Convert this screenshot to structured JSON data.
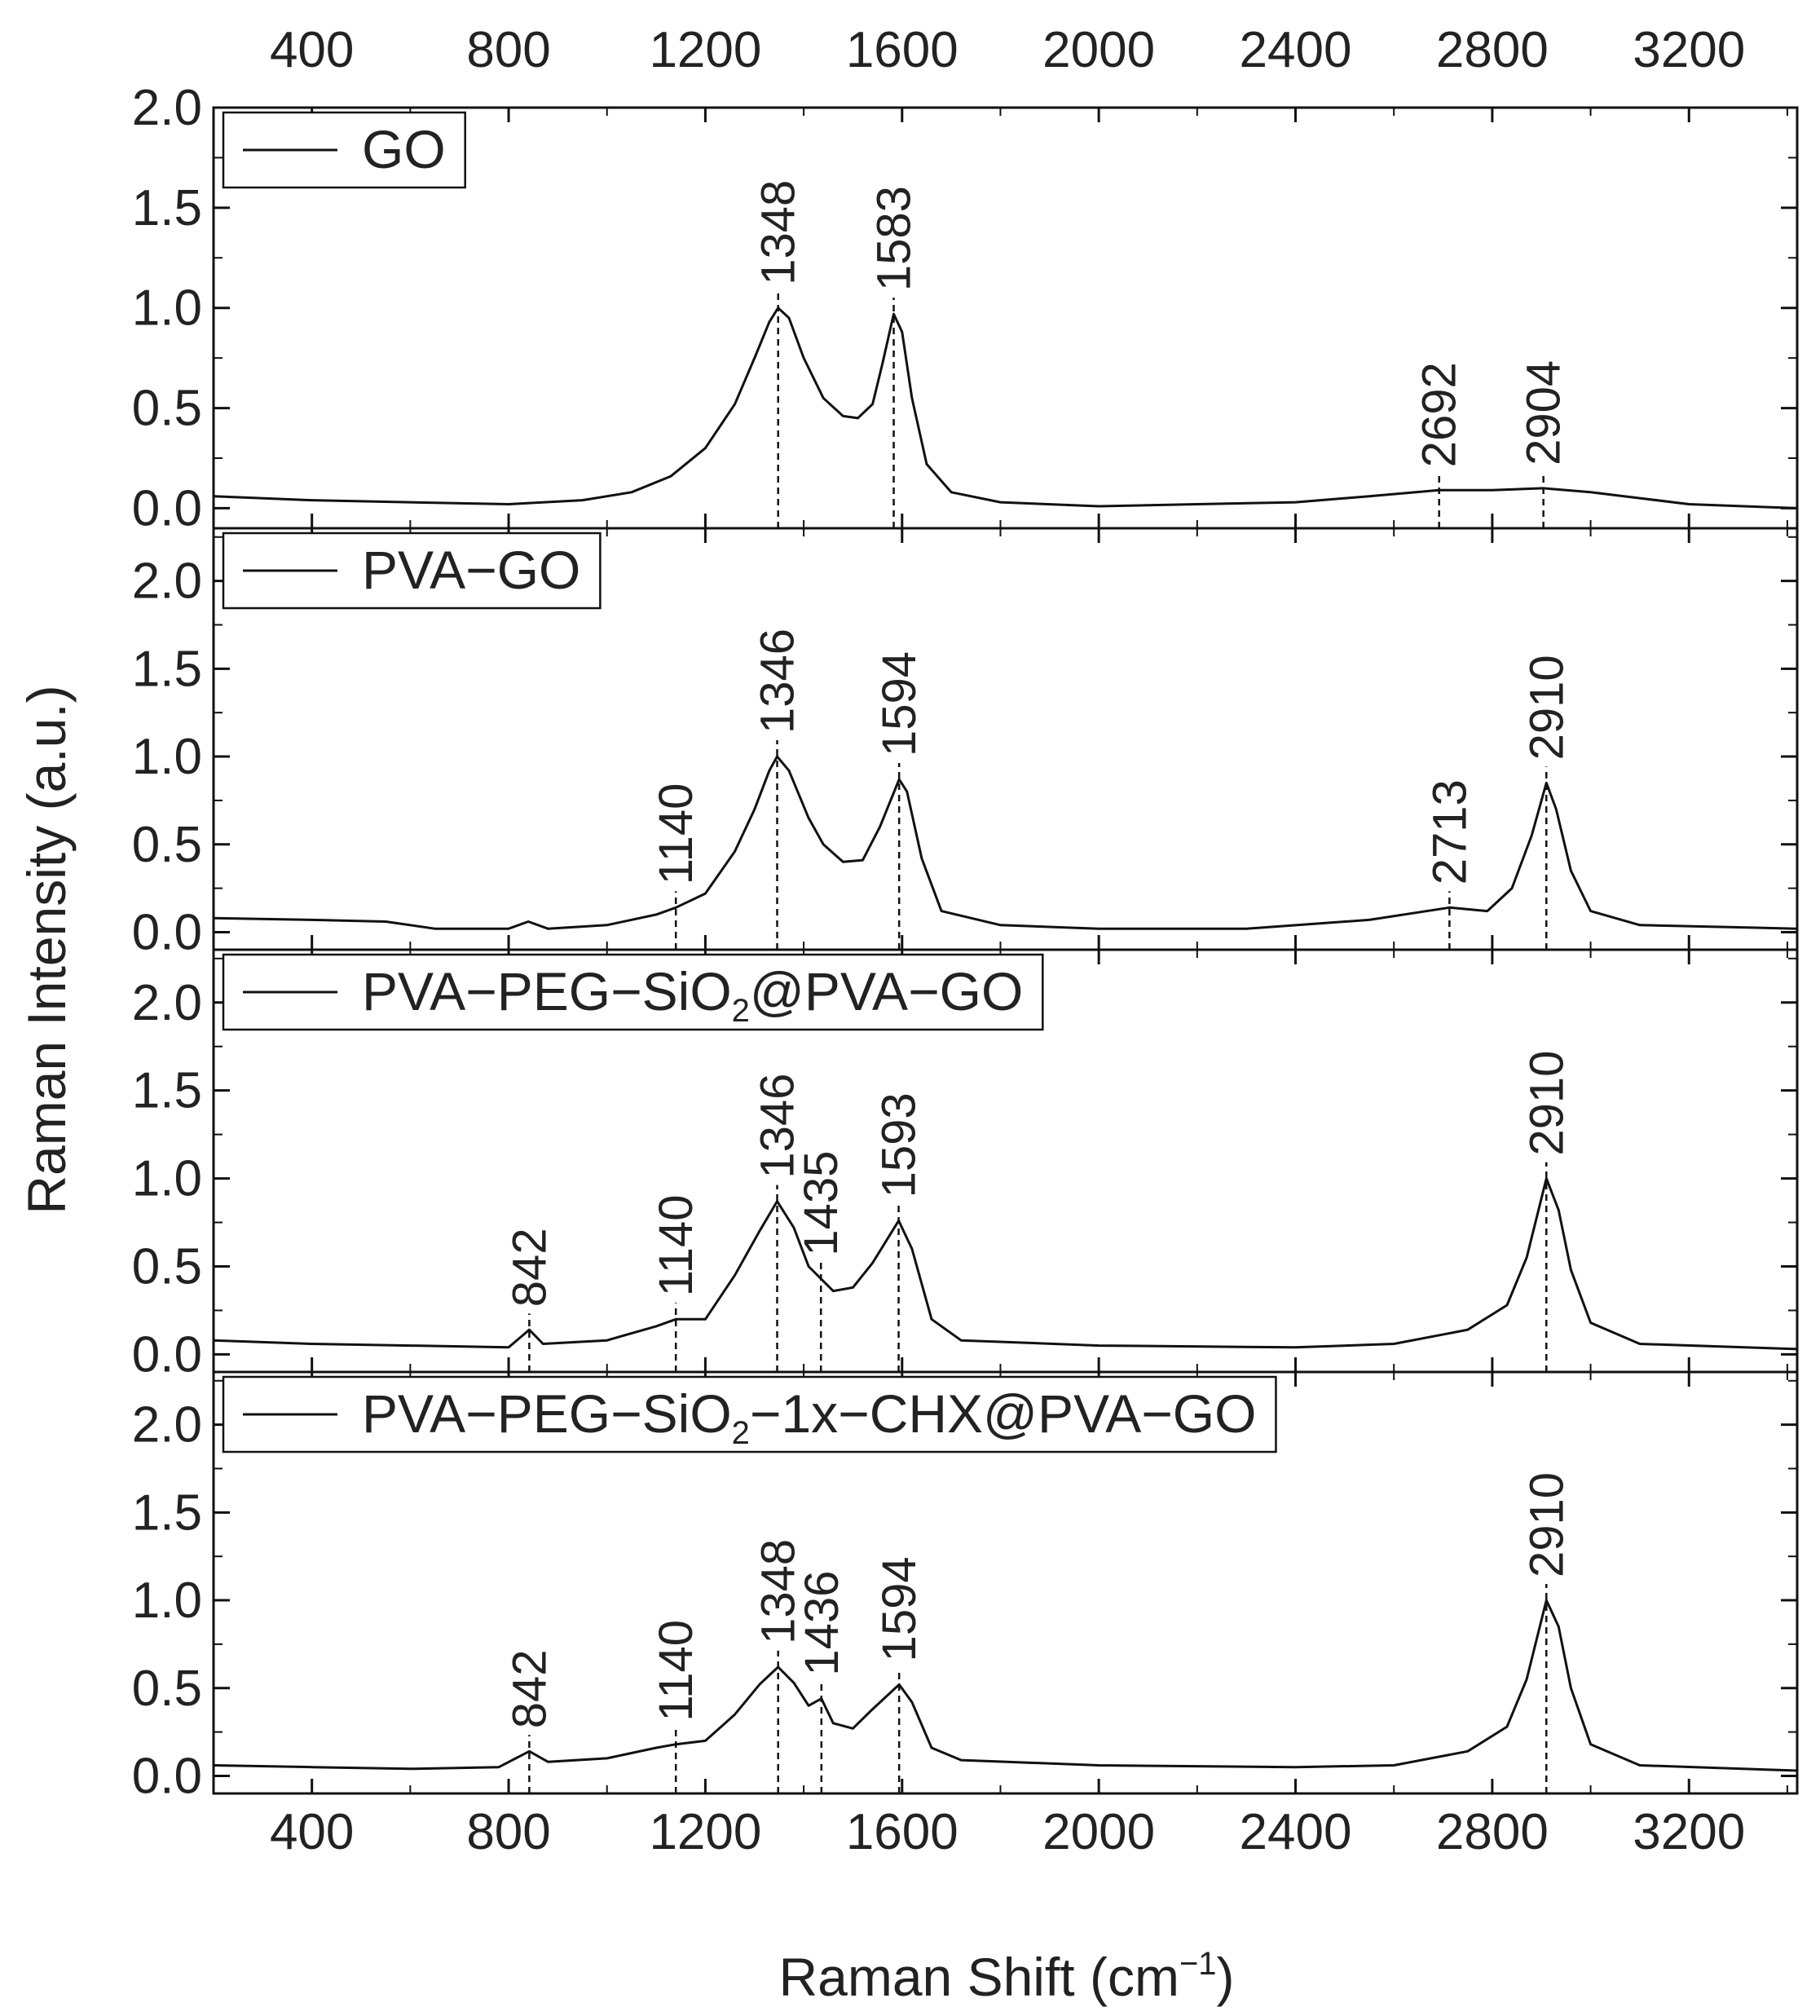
{
  "chart_data": {
    "type": "line",
    "layout": "stacked-panels",
    "xlabel": "Raman Shift (cm",
    "xlabel_sup": "−1",
    "xlabel_close": ")",
    "ylabel": "Raman Intensity (a.u.)",
    "xlim": [
      200,
      3420
    ],
    "x_ticks": [
      "400",
      "800",
      "1200",
      "1600",
      "2000",
      "2400",
      "2800",
      "3200"
    ],
    "x_tick_values": [
      400,
      800,
      1200,
      1600,
      2000,
      2400,
      2800,
      3200
    ],
    "panels": [
      {
        "legend": "GO",
        "legend_sub": "",
        "legend_rest": "",
        "ylim": [
          -0.1,
          2.0
        ],
        "y_ticks": [
          "0.0",
          "0.5",
          "1.0",
          "1.5",
          "2.0"
        ],
        "y_tick_values": [
          0.0,
          0.5,
          1.0,
          1.5,
          2.0
        ],
        "baseline": 0.0,
        "peaks": [
          {
            "x": 1348,
            "label": "1348"
          },
          {
            "x": 1583,
            "label": "1583"
          },
          {
            "x": 2692,
            "label": "2692"
          },
          {
            "x": 2904,
            "label": "2904"
          }
        ],
        "series": [
          {
            "x": 200,
            "y": 0.06
          },
          {
            "x": 400,
            "y": 0.04
          },
          {
            "x": 600,
            "y": 0.03
          },
          {
            "x": 800,
            "y": 0.02
          },
          {
            "x": 950,
            "y": 0.04
          },
          {
            "x": 1050,
            "y": 0.08
          },
          {
            "x": 1130,
            "y": 0.16
          },
          {
            "x": 1200,
            "y": 0.3
          },
          {
            "x": 1260,
            "y": 0.52
          },
          {
            "x": 1300,
            "y": 0.75
          },
          {
            "x": 1330,
            "y": 0.93
          },
          {
            "x": 1348,
            "y": 1.0
          },
          {
            "x": 1370,
            "y": 0.95
          },
          {
            "x": 1400,
            "y": 0.75
          },
          {
            "x": 1440,
            "y": 0.55
          },
          {
            "x": 1480,
            "y": 0.46
          },
          {
            "x": 1510,
            "y": 0.45
          },
          {
            "x": 1540,
            "y": 0.52
          },
          {
            "x": 1560,
            "y": 0.72
          },
          {
            "x": 1583,
            "y": 0.97
          },
          {
            "x": 1600,
            "y": 0.88
          },
          {
            "x": 1620,
            "y": 0.55
          },
          {
            "x": 1650,
            "y": 0.22
          },
          {
            "x": 1700,
            "y": 0.08
          },
          {
            "x": 1800,
            "y": 0.03
          },
          {
            "x": 2000,
            "y": 0.01
          },
          {
            "x": 2200,
            "y": 0.02
          },
          {
            "x": 2400,
            "y": 0.03
          },
          {
            "x": 2550,
            "y": 0.06
          },
          {
            "x": 2692,
            "y": 0.09
          },
          {
            "x": 2800,
            "y": 0.09
          },
          {
            "x": 2904,
            "y": 0.1
          },
          {
            "x": 3000,
            "y": 0.08
          },
          {
            "x": 3100,
            "y": 0.05
          },
          {
            "x": 3200,
            "y": 0.02
          },
          {
            "x": 3420,
            "y": 0.0
          }
        ]
      },
      {
        "legend": "PVA−GO",
        "legend_sub": "",
        "legend_rest": "",
        "ylim": [
          -0.1,
          2.3
        ],
        "y_ticks": [
          "0.0",
          "0.5",
          "1.0",
          "1.5",
          "2.0"
        ],
        "y_tick_values": [
          0.0,
          0.5,
          1.0,
          1.5,
          2.0
        ],
        "baseline": 0.0,
        "peaks": [
          {
            "x": 1140,
            "label": "1140"
          },
          {
            "x": 1346,
            "label": "1346"
          },
          {
            "x": 1594,
            "label": "1594"
          },
          {
            "x": 2713,
            "label": "2713"
          },
          {
            "x": 2910,
            "label": "2910"
          }
        ],
        "series": [
          {
            "x": 200,
            "y": 0.08
          },
          {
            "x": 400,
            "y": 0.07
          },
          {
            "x": 550,
            "y": 0.06
          },
          {
            "x": 650,
            "y": 0.02
          },
          {
            "x": 800,
            "y": 0.02
          },
          {
            "x": 840,
            "y": 0.06
          },
          {
            "x": 880,
            "y": 0.02
          },
          {
            "x": 1000,
            "y": 0.04
          },
          {
            "x": 1100,
            "y": 0.1
          },
          {
            "x": 1140,
            "y": 0.14
          },
          {
            "x": 1200,
            "y": 0.22
          },
          {
            "x": 1260,
            "y": 0.46
          },
          {
            "x": 1300,
            "y": 0.7
          },
          {
            "x": 1330,
            "y": 0.92
          },
          {
            "x": 1346,
            "y": 1.0
          },
          {
            "x": 1370,
            "y": 0.92
          },
          {
            "x": 1410,
            "y": 0.65
          },
          {
            "x": 1440,
            "y": 0.5
          },
          {
            "x": 1480,
            "y": 0.4
          },
          {
            "x": 1520,
            "y": 0.41
          },
          {
            "x": 1555,
            "y": 0.6
          },
          {
            "x": 1594,
            "y": 0.87
          },
          {
            "x": 1610,
            "y": 0.8
          },
          {
            "x": 1640,
            "y": 0.42
          },
          {
            "x": 1680,
            "y": 0.12
          },
          {
            "x": 1800,
            "y": 0.04
          },
          {
            "x": 2000,
            "y": 0.02
          },
          {
            "x": 2300,
            "y": 0.02
          },
          {
            "x": 2550,
            "y": 0.07
          },
          {
            "x": 2713,
            "y": 0.14
          },
          {
            "x": 2790,
            "y": 0.12
          },
          {
            "x": 2840,
            "y": 0.25
          },
          {
            "x": 2880,
            "y": 0.55
          },
          {
            "x": 2910,
            "y": 0.85
          },
          {
            "x": 2930,
            "y": 0.7
          },
          {
            "x": 2960,
            "y": 0.35
          },
          {
            "x": 3000,
            "y": 0.12
          },
          {
            "x": 3100,
            "y": 0.04
          },
          {
            "x": 3420,
            "y": 0.02
          }
        ]
      },
      {
        "legend": "PVA−PEG−SiO",
        "legend_sub": "2",
        "legend_rest": "@PVA−GO",
        "ylim": [
          -0.1,
          2.3
        ],
        "y_ticks": [
          "0.0",
          "0.5",
          "1.0",
          "1.5",
          "2.0"
        ],
        "y_tick_values": [
          0.0,
          0.5,
          1.0,
          1.5,
          2.0
        ],
        "baseline": 0.0,
        "peaks": [
          {
            "x": 842,
            "label": "842"
          },
          {
            "x": 1140,
            "label": "1140"
          },
          {
            "x": 1346,
            "label": "1346"
          },
          {
            "x": 1435,
            "label": "1435"
          },
          {
            "x": 1593,
            "label": "1593"
          },
          {
            "x": 2910,
            "label": "2910"
          }
        ],
        "series": [
          {
            "x": 200,
            "y": 0.08
          },
          {
            "x": 400,
            "y": 0.06
          },
          {
            "x": 600,
            "y": 0.05
          },
          {
            "x": 800,
            "y": 0.04
          },
          {
            "x": 842,
            "y": 0.14
          },
          {
            "x": 870,
            "y": 0.06
          },
          {
            "x": 1000,
            "y": 0.08
          },
          {
            "x": 1100,
            "y": 0.16
          },
          {
            "x": 1140,
            "y": 0.2
          },
          {
            "x": 1200,
            "y": 0.2
          },
          {
            "x": 1260,
            "y": 0.45
          },
          {
            "x": 1310,
            "y": 0.7
          },
          {
            "x": 1346,
            "y": 0.87
          },
          {
            "x": 1380,
            "y": 0.72
          },
          {
            "x": 1410,
            "y": 0.5
          },
          {
            "x": 1435,
            "y": 0.43
          },
          {
            "x": 1460,
            "y": 0.36
          },
          {
            "x": 1500,
            "y": 0.38
          },
          {
            "x": 1540,
            "y": 0.52
          },
          {
            "x": 1593,
            "y": 0.76
          },
          {
            "x": 1620,
            "y": 0.6
          },
          {
            "x": 1660,
            "y": 0.2
          },
          {
            "x": 1720,
            "y": 0.08
          },
          {
            "x": 2000,
            "y": 0.05
          },
          {
            "x": 2400,
            "y": 0.04
          },
          {
            "x": 2600,
            "y": 0.06
          },
          {
            "x": 2750,
            "y": 0.14
          },
          {
            "x": 2830,
            "y": 0.28
          },
          {
            "x": 2870,
            "y": 0.55
          },
          {
            "x": 2910,
            "y": 1.0
          },
          {
            "x": 2935,
            "y": 0.82
          },
          {
            "x": 2960,
            "y": 0.48
          },
          {
            "x": 3000,
            "y": 0.18
          },
          {
            "x": 3100,
            "y": 0.06
          },
          {
            "x": 3420,
            "y": 0.03
          }
        ]
      },
      {
        "legend": "PVA−PEG−SiO",
        "legend_sub": "2",
        "legend_rest": "−1x−CHX@PVA−GO",
        "ylim": [
          -0.1,
          2.3
        ],
        "y_ticks": [
          "0.0",
          "0.5",
          "1.0",
          "1.5",
          "2.0"
        ],
        "y_tick_values": [
          0.0,
          0.5,
          1.0,
          1.5,
          2.0
        ],
        "baseline": 0.0,
        "peaks": [
          {
            "x": 842,
            "label": "842"
          },
          {
            "x": 1140,
            "label": "1140"
          },
          {
            "x": 1348,
            "label": "1348"
          },
          {
            "x": 1436,
            "label": "1436"
          },
          {
            "x": 1594,
            "label": "1594"
          },
          {
            "x": 2910,
            "label": "2910"
          }
        ],
        "series": [
          {
            "x": 200,
            "y": 0.06
          },
          {
            "x": 400,
            "y": 0.05
          },
          {
            "x": 600,
            "y": 0.04
          },
          {
            "x": 780,
            "y": 0.05
          },
          {
            "x": 842,
            "y": 0.14
          },
          {
            "x": 880,
            "y": 0.08
          },
          {
            "x": 1000,
            "y": 0.1
          },
          {
            "x": 1100,
            "y": 0.16
          },
          {
            "x": 1140,
            "y": 0.18
          },
          {
            "x": 1200,
            "y": 0.2
          },
          {
            "x": 1260,
            "y": 0.35
          },
          {
            "x": 1310,
            "y": 0.52
          },
          {
            "x": 1348,
            "y": 0.62
          },
          {
            "x": 1380,
            "y": 0.53
          },
          {
            "x": 1410,
            "y": 0.4
          },
          {
            "x": 1436,
            "y": 0.44
          },
          {
            "x": 1460,
            "y": 0.3
          },
          {
            "x": 1500,
            "y": 0.27
          },
          {
            "x": 1540,
            "y": 0.38
          },
          {
            "x": 1594,
            "y": 0.52
          },
          {
            "x": 1620,
            "y": 0.42
          },
          {
            "x": 1660,
            "y": 0.16
          },
          {
            "x": 1720,
            "y": 0.09
          },
          {
            "x": 2000,
            "y": 0.06
          },
          {
            "x": 2400,
            "y": 0.05
          },
          {
            "x": 2600,
            "y": 0.06
          },
          {
            "x": 2750,
            "y": 0.14
          },
          {
            "x": 2830,
            "y": 0.28
          },
          {
            "x": 2870,
            "y": 0.55
          },
          {
            "x": 2910,
            "y": 1.0
          },
          {
            "x": 2935,
            "y": 0.85
          },
          {
            "x": 2960,
            "y": 0.5
          },
          {
            "x": 3000,
            "y": 0.18
          },
          {
            "x": 3100,
            "y": 0.06
          },
          {
            "x": 3420,
            "y": 0.03
          }
        ]
      }
    ]
  }
}
